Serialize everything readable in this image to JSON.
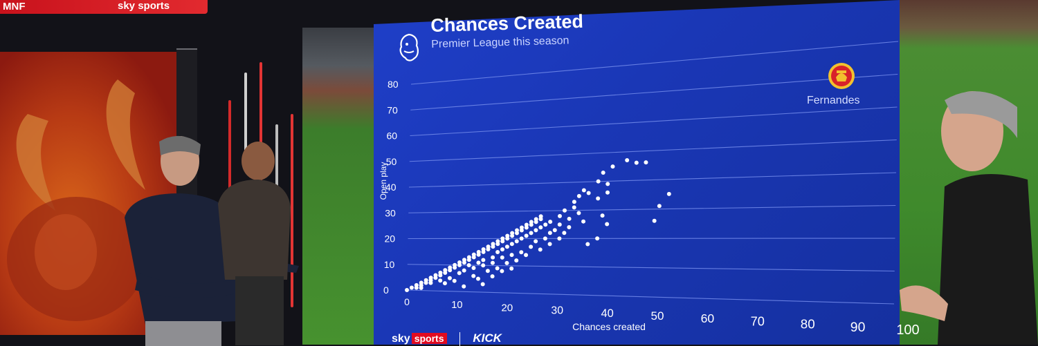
{
  "broadcast": {
    "channel_tag": "MNF",
    "channel": "sky sports",
    "footer_brand": "sky",
    "footer_brand_2": "sports",
    "footer_partner": "KICK"
  },
  "colors": {
    "screen_blue": "#1a37b6",
    "grid": "#6f87e8",
    "points": "#ffffff",
    "accent_red": "#e10b1f"
  },
  "icons": {
    "league": "premier-league-lion-icon",
    "club": "manchester-united-crest-icon"
  },
  "chart_data": {
    "type": "scatter",
    "title": "Chances Created",
    "subtitle": "Premier League this season",
    "xlabel": "Chances created",
    "ylabel": "Open play",
    "xlim": [
      0,
      100
    ],
    "ylim": [
      0,
      80
    ],
    "x_ticks": [
      0,
      10,
      20,
      30,
      40,
      50,
      60,
      70,
      80,
      90,
      100
    ],
    "y_ticks": [
      0,
      10,
      20,
      30,
      40,
      50,
      60,
      70,
      80
    ],
    "grid": true,
    "annotations": [
      {
        "label": "Fernandes"
      }
    ],
    "series": [
      {
        "points": [
          [
            0,
            0
          ],
          [
            1,
            1
          ],
          [
            2,
            1
          ],
          [
            2,
            2
          ],
          [
            3,
            2
          ],
          [
            3,
            3
          ],
          [
            4,
            3
          ],
          [
            4,
            4
          ],
          [
            5,
            4
          ],
          [
            5,
            5
          ],
          [
            6,
            5
          ],
          [
            6,
            6
          ],
          [
            7,
            6
          ],
          [
            7,
            7
          ],
          [
            8,
            7
          ],
          [
            8,
            8
          ],
          [
            9,
            8
          ],
          [
            9,
            9
          ],
          [
            10,
            9
          ],
          [
            10,
            10
          ],
          [
            11,
            10
          ],
          [
            11,
            11
          ],
          [
            12,
            11
          ],
          [
            12,
            12
          ],
          [
            13,
            12
          ],
          [
            13,
            13
          ],
          [
            14,
            13
          ],
          [
            14,
            14
          ],
          [
            15,
            14
          ],
          [
            15,
            15
          ],
          [
            16,
            15
          ],
          [
            16,
            16
          ],
          [
            17,
            16
          ],
          [
            17,
            17
          ],
          [
            18,
            17
          ],
          [
            18,
            18
          ],
          [
            19,
            18
          ],
          [
            19,
            19
          ],
          [
            20,
            19
          ],
          [
            20,
            20
          ],
          [
            21,
            20
          ],
          [
            21,
            21
          ],
          [
            22,
            21
          ],
          [
            22,
            22
          ],
          [
            23,
            22
          ],
          [
            23,
            23
          ],
          [
            24,
            23
          ],
          [
            24,
            24
          ],
          [
            25,
            24
          ],
          [
            25,
            25
          ],
          [
            26,
            25
          ],
          [
            26,
            26
          ],
          [
            27,
            26
          ],
          [
            27,
            27
          ],
          [
            28,
            27
          ],
          [
            28,
            28
          ],
          [
            3,
            1
          ],
          [
            5,
            3
          ],
          [
            7,
            4
          ],
          [
            9,
            5
          ],
          [
            11,
            7
          ],
          [
            12,
            8
          ],
          [
            14,
            9
          ],
          [
            15,
            11
          ],
          [
            16,
            12
          ],
          [
            18,
            13
          ],
          [
            19,
            15
          ],
          [
            20,
            16
          ],
          [
            21,
            17
          ],
          [
            22,
            18
          ],
          [
            23,
            19
          ],
          [
            24,
            20
          ],
          [
            25,
            21
          ],
          [
            26,
            22
          ],
          [
            27,
            23
          ],
          [
            28,
            24
          ],
          [
            29,
            25
          ],
          [
            30,
            26
          ],
          [
            13,
            10
          ],
          [
            16,
            10
          ],
          [
            18,
            11
          ],
          [
            20,
            13
          ],
          [
            22,
            14
          ],
          [
            24,
            15
          ],
          [
            26,
            17
          ],
          [
            27,
            19
          ],
          [
            29,
            20
          ],
          [
            30,
            22
          ],
          [
            31,
            23
          ],
          [
            32,
            25
          ],
          [
            14,
            6
          ],
          [
            17,
            8
          ],
          [
            19,
            9
          ],
          [
            21,
            11
          ],
          [
            23,
            12
          ],
          [
            25,
            14
          ],
          [
            28,
            16
          ],
          [
            30,
            18
          ],
          [
            32,
            20
          ],
          [
            33,
            22
          ],
          [
            34,
            24
          ],
          [
            8,
            3
          ],
          [
            10,
            4
          ],
          [
            15,
            5
          ],
          [
            18,
            6
          ],
          [
            20,
            8
          ],
          [
            22,
            9
          ],
          [
            12,
            2
          ],
          [
            16,
            3
          ],
          [
            33,
            30
          ],
          [
            35,
            31
          ],
          [
            32,
            28
          ],
          [
            36,
            29
          ],
          [
            34,
            27
          ],
          [
            37,
            26
          ],
          [
            35,
            33
          ],
          [
            36,
            35
          ],
          [
            37,
            37
          ],
          [
            38,
            36
          ],
          [
            40,
            40
          ],
          [
            41,
            43
          ],
          [
            42,
            39
          ],
          [
            40,
            34
          ],
          [
            42,
            36
          ],
          [
            43,
            45
          ],
          [
            41,
            28
          ],
          [
            42,
            25
          ],
          [
            40,
            20
          ],
          [
            38,
            18
          ],
          [
            46,
            47
          ],
          [
            48,
            46
          ],
          [
            50,
            46
          ],
          [
            52,
            26
          ],
          [
            55,
            35
          ],
          [
            53,
            31
          ]
        ]
      }
    ]
  }
}
